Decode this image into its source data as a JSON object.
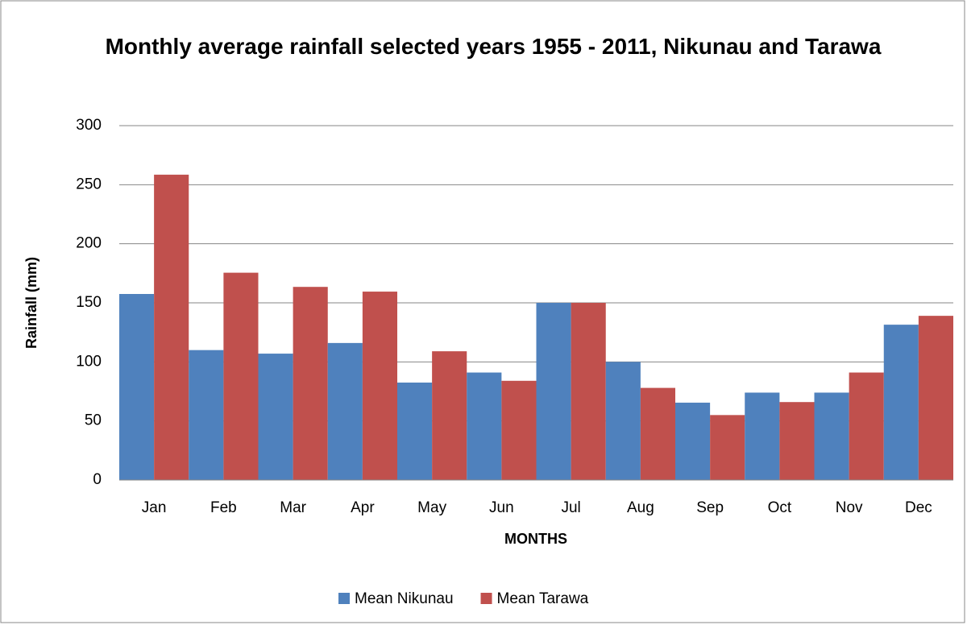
{
  "chart_data": {
    "type": "bar",
    "title": "Monthly average rainfall selected years 1955 - 2011, Nikunau and Tarawa",
    "xlabel": "MONTHS",
    "ylabel": "Rainfall (mm)",
    "categories": [
      "Jan",
      "Feb",
      "Mar",
      "Apr",
      "May",
      "Jun",
      "Jul",
      "Aug",
      "Sep",
      "Oct",
      "Nov",
      "Dec"
    ],
    "series": [
      {
        "name": "Mean Nikunau",
        "color": "#4f81bd",
        "values": [
          157.5,
          110,
          107,
          116,
          82.5,
          91,
          150,
          100,
          65.5,
          74,
          74,
          131.5
        ]
      },
      {
        "name": "Mean Tarawa",
        "color": "#c0504d",
        "values": [
          258.5,
          175.5,
          163.5,
          159.5,
          109,
          84,
          150,
          78,
          55,
          66,
          91,
          139
        ]
      }
    ],
    "ylim": [
      0,
      300
    ],
    "yticks": [
      0,
      50,
      100,
      150,
      200,
      250,
      300
    ],
    "grid": true,
    "legend": "bottom"
  }
}
